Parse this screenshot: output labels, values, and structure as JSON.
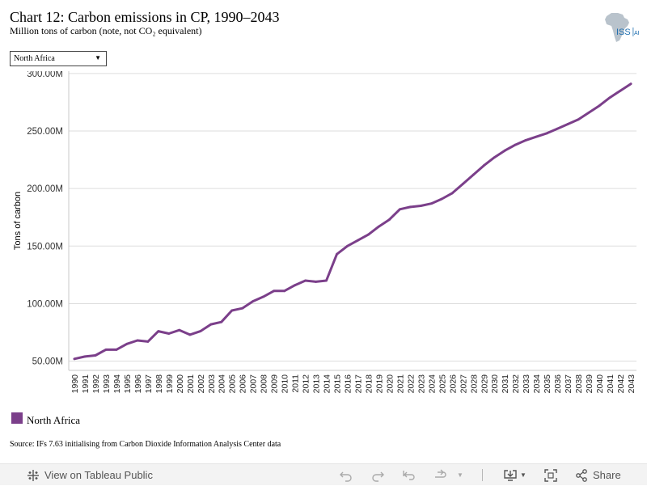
{
  "header": {
    "title": "Chart 12: Carbon emissions in CP, 1990–2043",
    "subtitle": "Million tons of carbon (note, not CO₂ equivalent)"
  },
  "logo": {
    "text_main": "ISS",
    "text_sub": "AF"
  },
  "filter": {
    "selected": "North Africa"
  },
  "chart_data": {
    "type": "line",
    "ylabel": "Tons of carbon",
    "ylim": [
      42000000,
      302000000
    ],
    "yticks": [
      50000000,
      100000000,
      150000000,
      200000000,
      250000000,
      300000000
    ],
    "ytick_labels": [
      "50.00M",
      "100.00M",
      "150.00M",
      "200.00M",
      "250.00M",
      "300.00M"
    ],
    "x": [
      "1990",
      "1991",
      "1992",
      "1993",
      "1994",
      "1995",
      "1996",
      "1997",
      "1998",
      "1999",
      "2000",
      "2001",
      "2002",
      "2003",
      "2004",
      "2005",
      "2006",
      "2007",
      "2008",
      "2009",
      "2010",
      "2011",
      "2012",
      "2013",
      "2014",
      "2015",
      "2016",
      "2017",
      "2018",
      "2019",
      "2020",
      "2021",
      "2022",
      "2023",
      "2024",
      "2025",
      "2026",
      "2027",
      "2028",
      "2029",
      "2030",
      "2031",
      "2032",
      "2033",
      "2034",
      "2035",
      "2036",
      "2037",
      "2038",
      "2039",
      "2040",
      "2041",
      "2042",
      "2043"
    ],
    "series": [
      {
        "name": "North Africa",
        "color": "#7b3f8a",
        "values": [
          52,
          54,
          55,
          60,
          60,
          65,
          68,
          67,
          76,
          74,
          77,
          73,
          76,
          82,
          84,
          94,
          96,
          102,
          106,
          111,
          111,
          116,
          120,
          119,
          120,
          143,
          150,
          155,
          160,
          167,
          173,
          182,
          184,
          185,
          187,
          191,
          196,
          204,
          212,
          220,
          227,
          233,
          238,
          242,
          245,
          248,
          252,
          256,
          260,
          266,
          272,
          279,
          285,
          291
        ]
      }
    ],
    "value_unit": "million",
    "grid": true,
    "legend": "bottom-left"
  },
  "source": "Source: IFs 7.63 initialising from Carbon Dioxide Information Analysis Center data",
  "toolbar": {
    "view_label": "View on Tableau Public",
    "share_label": "Share",
    "icons": [
      "tableau-icon",
      "undo-icon",
      "redo-icon",
      "revert-icon",
      "refresh-icon",
      "download-icon",
      "fullscreen-icon",
      "share-icon"
    ]
  }
}
